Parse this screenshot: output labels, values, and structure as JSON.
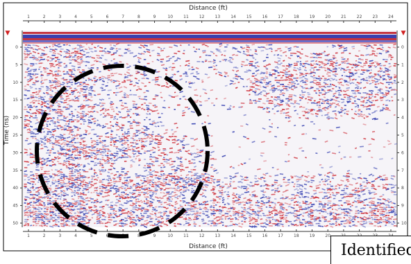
{
  "radargram": {
    "top_axis_title": "Distance (ft)",
    "bottom_axis_title": "Distance (ft)",
    "left_axis_title": "Time (ns)",
    "top_ticks": [
      "1",
      "2",
      "3",
      "4",
      "5",
      "6",
      "7",
      "8",
      "9",
      "10",
      "11",
      "12",
      "13",
      "14",
      "15",
      "16",
      "17",
      "18",
      "19",
      "20",
      "21",
      "22",
      "23",
      "24"
    ],
    "bottom_ticks": [
      "1",
      "2",
      "3",
      "4",
      "5",
      "6",
      "7",
      "8",
      "9",
      "10",
      "11",
      "12",
      "13",
      "14",
      "15",
      "16",
      "17",
      "18",
      "19",
      "20",
      "21",
      "22",
      "23",
      "24"
    ],
    "left_ticks": [
      "0",
      "5",
      "10",
      "15",
      "20",
      "25",
      "30",
      "35",
      "40",
      "45",
      "50"
    ],
    "right_ticks": [
      "0",
      "1",
      "2",
      "3",
      "4",
      "5",
      "6",
      "7",
      "8",
      "9",
      "10"
    ],
    "marker_glyph": "▼",
    "colors": {
      "positive": "#cc2a35",
      "negative": "#3540b0",
      "annotation": "#000000"
    }
  },
  "annotation": {
    "shape": "dashed-circle",
    "label": "Identified"
  }
}
